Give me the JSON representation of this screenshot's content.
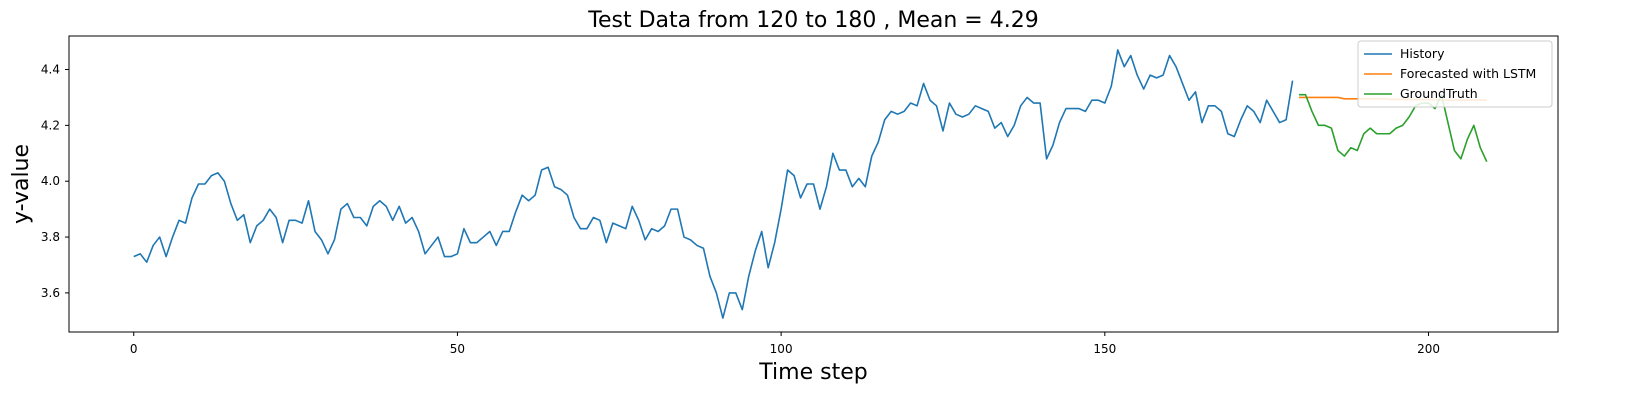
{
  "chart_data": {
    "type": "line",
    "title": "Test Data from 120 to 180 , Mean = 4.29",
    "xlabel": "Time step",
    "ylabel": "y-value",
    "xlim": [
      -10,
      220
    ],
    "ylim": [
      3.46,
      4.52
    ],
    "xticks": [
      0,
      50,
      100,
      150,
      200
    ],
    "xtick_labels": [
      "0",
      "50",
      "100",
      "150",
      "200"
    ],
    "yticks": [
      3.6,
      3.8,
      4.0,
      4.2,
      4.4
    ],
    "ytick_labels": [
      "3.6",
      "3.8",
      "4.0",
      "4.2",
      "4.4"
    ],
    "grid": false,
    "legend_position": "top-right",
    "series": [
      {
        "name": "History",
        "color": "#1f77b4",
        "x_start": 0,
        "values": [
          3.73,
          3.74,
          3.71,
          3.77,
          3.8,
          3.73,
          3.8,
          3.86,
          3.85,
          3.94,
          3.99,
          3.99,
          4.02,
          4.03,
          4.0,
          3.92,
          3.86,
          3.88,
          3.78,
          3.84,
          3.86,
          3.9,
          3.87,
          3.78,
          3.86,
          3.86,
          3.85,
          3.93,
          3.82,
          3.79,
          3.74,
          3.79,
          3.9,
          3.92,
          3.87,
          3.87,
          3.84,
          3.91,
          3.93,
          3.91,
          3.86,
          3.91,
          3.85,
          3.87,
          3.82,
          3.74,
          3.77,
          3.8,
          3.73,
          3.73,
          3.74,
          3.83,
          3.78,
          3.78,
          3.8,
          3.82,
          3.77,
          3.82,
          3.82,
          3.89,
          3.95,
          3.93,
          3.95,
          4.04,
          4.05,
          3.98,
          3.97,
          3.95,
          3.87,
          3.83,
          3.83,
          3.87,
          3.86,
          3.78,
          3.85,
          3.84,
          3.83,
          3.91,
          3.86,
          3.79,
          3.83,
          3.82,
          3.84,
          3.9,
          3.9,
          3.8,
          3.79,
          3.77,
          3.76,
          3.66,
          3.6,
          3.51,
          3.6,
          3.6,
          3.54,
          3.66,
          3.75,
          3.82,
          3.69,
          3.78,
          3.9,
          4.04,
          4.02,
          3.94,
          3.99,
          3.99,
          3.9,
          3.98,
          4.1,
          4.04,
          4.04,
          3.98,
          4.01,
          3.98,
          4.09,
          4.14,
          4.22,
          4.25,
          4.24,
          4.25,
          4.28,
          4.27,
          4.35,
          4.29,
          4.27,
          4.18,
          4.28,
          4.24,
          4.23,
          4.24,
          4.27,
          4.26,
          4.25,
          4.19,
          4.21,
          4.16,
          4.2,
          4.27,
          4.3,
          4.28,
          4.28,
          4.08,
          4.13,
          4.21,
          4.26,
          4.26,
          4.26,
          4.25,
          4.29,
          4.29,
          4.28,
          4.34,
          4.47,
          4.41,
          4.45,
          4.38,
          4.33,
          4.38,
          4.37,
          4.38,
          4.45,
          4.41,
          4.35,
          4.29,
          4.32,
          4.21,
          4.27,
          4.27,
          4.25,
          4.17,
          4.16,
          4.22,
          4.27,
          4.25,
          4.21,
          4.29,
          4.25,
          4.21,
          4.22,
          4.36
        ]
      },
      {
        "name": "Forecasted with LSTM",
        "color": "#ff7f0e",
        "x_start": 180,
        "values": [
          4.3,
          4.3,
          4.3,
          4.3,
          4.3,
          4.3,
          4.3,
          4.295,
          4.295,
          4.295,
          4.295,
          4.295,
          4.295,
          4.295,
          4.293,
          4.293,
          4.293,
          4.293,
          4.292,
          4.292,
          4.292,
          4.292,
          4.29,
          4.29,
          4.29,
          4.29,
          4.29,
          4.29,
          4.29,
          4.29
        ]
      },
      {
        "name": "GroundTruth",
        "color": "#2ca02c",
        "x_start": 180,
        "values": [
          4.31,
          4.31,
          4.25,
          4.2,
          4.2,
          4.19,
          4.11,
          4.09,
          4.12,
          4.11,
          4.17,
          4.19,
          4.17,
          4.17,
          4.17,
          4.19,
          4.2,
          4.23,
          4.27,
          4.28,
          4.28,
          4.26,
          4.31,
          4.21,
          4.11,
          4.08,
          4.15,
          4.2,
          4.12,
          4.07
        ]
      }
    ]
  }
}
